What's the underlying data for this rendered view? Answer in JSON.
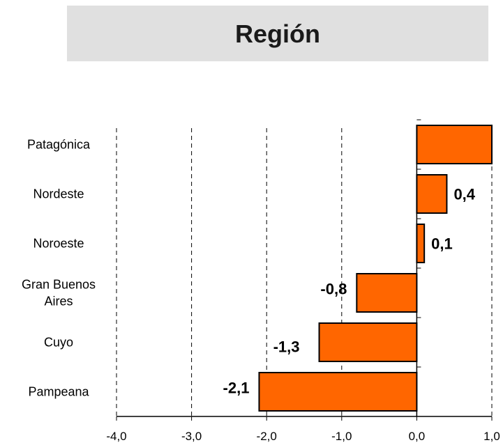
{
  "chart_data": {
    "type": "bar",
    "orientation": "horizontal",
    "title": "Región",
    "categories": [
      "Patagónica",
      "Nordeste",
      "Noroeste",
      "Gran Buenos Aires",
      "Cuyo",
      "Pampeana"
    ],
    "category_lines": [
      [
        "Patagónica"
      ],
      [
        "Nordeste"
      ],
      [
        "Noroeste"
      ],
      [
        "Gran Buenos",
        "Aires"
      ],
      [
        "Cuyo"
      ],
      [
        "Pampeana"
      ]
    ],
    "values": [
      1.1,
      0.4,
      0.1,
      -0.8,
      -1.3,
      -2.1
    ],
    "data_labels": [
      "",
      "0,4",
      "0,1",
      "-0,8",
      "-1,3",
      "-2,1"
    ],
    "xlim": [
      -4.0,
      1.0
    ],
    "ticks": [
      -4.0,
      -3.0,
      -2.0,
      -1.0,
      0.0,
      1.0
    ],
    "tick_labels": [
      "-4,0",
      "-3,0",
      "-2,0",
      "-1,0",
      "0,0",
      "1,0"
    ],
    "grid": "vertical dashed",
    "bar_color": "#ff6600",
    "xlabel": "",
    "ylabel": ""
  }
}
